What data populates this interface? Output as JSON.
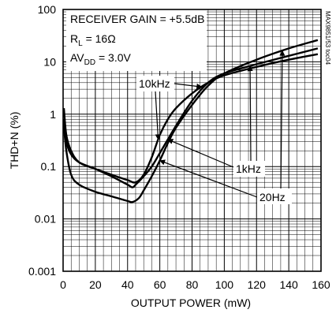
{
  "chart_data": {
    "type": "line",
    "xlabel": "OUTPUT POWER (mW)",
    "ylabel": "THD+N (%)",
    "xlim": [
      0,
      160
    ],
    "ylim": [
      0.001,
      100
    ],
    "y_scale": "log",
    "x_ticks": [
      0,
      20,
      40,
      60,
      80,
      100,
      120,
      140,
      160
    ],
    "y_ticks": [
      "0.001",
      "0.01",
      "0.1",
      "1",
      "10",
      "100"
    ],
    "grid": true,
    "conditions": {
      "line1": "RECEIVER GAIN = +5.5dB",
      "line2_prefix": "R",
      "line2_sub": "L",
      "line2_suffix": " = 16Ω",
      "line3_prefix": "AV",
      "line3_sub": "DD",
      "line3_suffix": " = 3.0V"
    },
    "watermark": "MAX9851/53 toc04",
    "series": [
      {
        "name": "10kHz",
        "points": [
          [
            0.5,
            1.3
          ],
          [
            2,
            0.4
          ],
          [
            5,
            0.2
          ],
          [
            10,
            0.12
          ],
          [
            20,
            0.09
          ],
          [
            30,
            0.07
          ],
          [
            40,
            0.055
          ],
          [
            45,
            0.05
          ],
          [
            50,
            0.07
          ],
          [
            55,
            0.15
          ],
          [
            60,
            0.4
          ],
          [
            65,
            0.8
          ],
          [
            70,
            1.3
          ],
          [
            80,
            2.5
          ],
          [
            90,
            4
          ],
          [
            100,
            5.5
          ],
          [
            120,
            8
          ],
          [
            140,
            11
          ],
          [
            158,
            14
          ]
        ]
      },
      {
        "name": "1kHz",
        "points": [
          [
            0.5,
            0.8
          ],
          [
            2,
            0.3
          ],
          [
            5,
            0.17
          ],
          [
            10,
            0.12
          ],
          [
            20,
            0.09
          ],
          [
            30,
            0.065
          ],
          [
            40,
            0.045
          ],
          [
            43,
            0.04
          ],
          [
            45,
            0.045
          ],
          [
            50,
            0.065
          ],
          [
            55,
            0.1
          ],
          [
            60,
            0.18
          ],
          [
            70,
            0.6
          ],
          [
            80,
            1.8
          ],
          [
            90,
            4
          ],
          [
            100,
            6
          ],
          [
            120,
            9
          ],
          [
            140,
            13
          ],
          [
            158,
            18
          ]
        ]
      },
      {
        "name": "20Hz",
        "points": [
          [
            0.5,
            0.6
          ],
          [
            2,
            0.2
          ],
          [
            5,
            0.07
          ],
          [
            10,
            0.045
          ],
          [
            20,
            0.033
          ],
          [
            30,
            0.027
          ],
          [
            40,
            0.022
          ],
          [
            43,
            0.021
          ],
          [
            47,
            0.025
          ],
          [
            50,
            0.035
          ],
          [
            55,
            0.065
          ],
          [
            60,
            0.13
          ],
          [
            65,
            0.28
          ],
          [
            70,
            0.55
          ],
          [
            80,
            1.5
          ],
          [
            90,
            3.5
          ],
          [
            100,
            6
          ],
          [
            120,
            11
          ],
          [
            140,
            18
          ],
          [
            158,
            26
          ]
        ]
      }
    ],
    "annotations": [
      {
        "series": "10kHz",
        "label": "10kHz"
      },
      {
        "series": "1kHz",
        "label": "1kHz"
      },
      {
        "series": "20Hz",
        "label": "20Hz"
      }
    ]
  }
}
